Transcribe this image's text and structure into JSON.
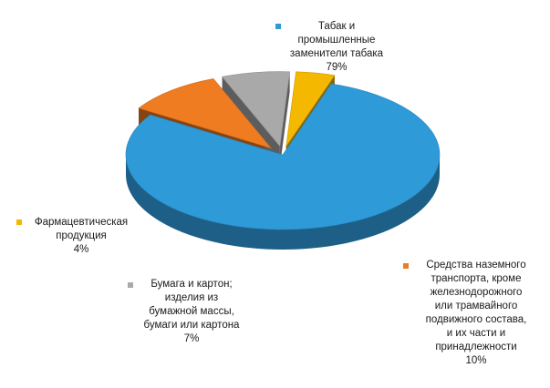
{
  "chart_data": {
    "type": "pie",
    "title": "",
    "slices": [
      {
        "label": "Табак и промышленные заменители табака",
        "lines": [
          "Табак и",
          "промышленные",
          "заменители табака"
        ],
        "value": 79,
        "pct_label": "79%",
        "color": "#2e9ad8"
      },
      {
        "label": "Средства наземного транспорта, кроме железнодорожного или трамвайного подвижного состава, и их части и принадлежности",
        "lines": [
          "Средства наземного",
          "транспорта, кроме",
          "железнодорожного",
          "или трамвайного",
          "подвижного состава,",
          "и их части и",
          "принадлежности"
        ],
        "value": 10,
        "pct_label": "10%",
        "color": "#f07c22"
      },
      {
        "label": "Бумага и картон; изделия из бумажной массы, бумаги или картона",
        "lines": [
          "Бумага и картон;",
          "изделия из",
          "бумажной массы,",
          "бумаги или картона"
        ],
        "value": 7,
        "pct_label": "7%",
        "color": "#a9a9a9"
      },
      {
        "label": "Фармацевтическая продукция",
        "lines": [
          "Фармацевтическая",
          "продукция"
        ],
        "value": 4,
        "pct_label": "4%",
        "color": "#f5b800"
      }
    ]
  }
}
